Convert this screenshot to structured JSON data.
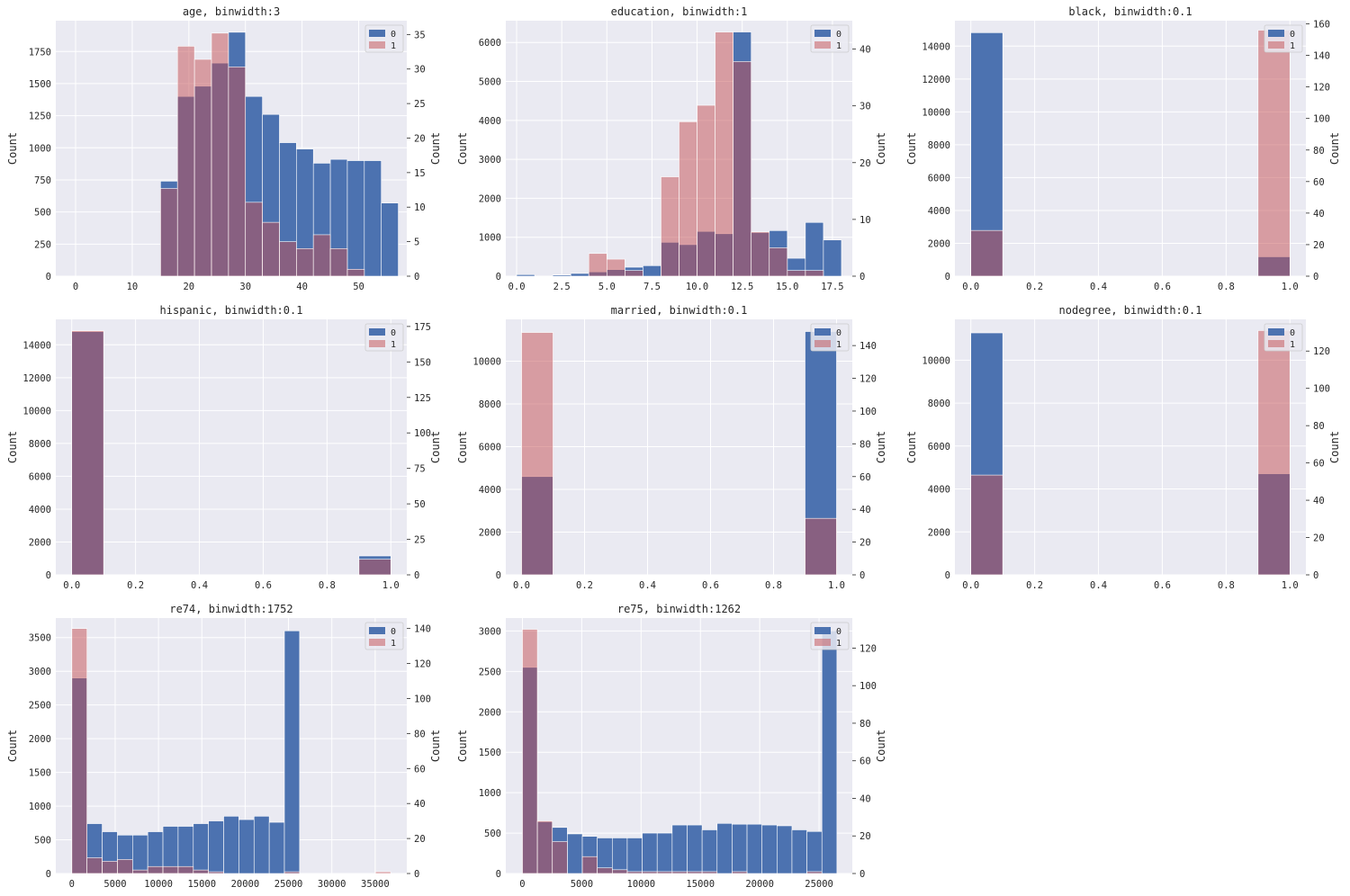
{
  "colors": {
    "panel_bg": "#eaeaf2",
    "grid": "#ffffff",
    "blue": "#4c72b0",
    "red": "#c44e52",
    "text": "#262626"
  },
  "chart_data": [
    {
      "type": "bar",
      "title": "age, binwidth:3",
      "xlabel": "",
      "ylabel_left": "Count",
      "ylabel_right": "Count",
      "xlim": [
        -3.5,
        58.5
      ],
      "xticks": [
        0,
        10,
        20,
        30,
        40,
        50
      ],
      "xtick_labels": [
        "0",
        "10",
        "20",
        "30",
        "40",
        "50"
      ],
      "ylim_left": [
        0,
        1990
      ],
      "yticks_left": [
        0,
        250,
        500,
        750,
        1000,
        1250,
        1500,
        1750
      ],
      "ytick_labels_left": [
        "0",
        "250",
        "500",
        "750",
        "1000",
        "1250",
        "1500",
        "1750"
      ],
      "ylim_right": [
        0,
        37
      ],
      "yticks_right": [
        0,
        5,
        10,
        15,
        20,
        25,
        30,
        35
      ],
      "ytick_labels_right": [
        "0",
        "5",
        "10",
        "15",
        "20",
        "25",
        "30",
        "35"
      ],
      "bin_edges": [
        15,
        18,
        21,
        24,
        27,
        30,
        33,
        36,
        39,
        42,
        45,
        48,
        51,
        54,
        57
      ],
      "legend": [
        "0",
        "1"
      ],
      "legend_loc": "upper right",
      "series": [
        {
          "name": "0",
          "axis": "left",
          "values": [
            740,
            1400,
            1480,
            1660,
            1900,
            1400,
            1260,
            1040,
            990,
            880,
            910,
            900,
            900,
            570
          ]
        },
        {
          "name": "1",
          "axis": "right",
          "values": [
            12.7,
            33.3,
            31.4,
            35.2,
            30.3,
            10.7,
            7.8,
            5,
            4,
            6,
            4,
            1,
            0,
            0
          ]
        }
      ]
    },
    {
      "type": "bar",
      "title": "education, binwidth:1",
      "xlabel": "",
      "ylabel_left": "Count",
      "ylabel_right": "Count",
      "xlim": [
        -0.6,
        18.6
      ],
      "xticks": [
        0,
        2.5,
        5,
        7.5,
        10,
        12.5,
        15,
        17.5
      ],
      "xtick_labels": [
        "0.0",
        "2.5",
        "5.0",
        "7.5",
        "10.0",
        "12.5",
        "15.0",
        "17.5"
      ],
      "ylim_left": [
        0,
        6560
      ],
      "yticks_left": [
        0,
        1000,
        2000,
        3000,
        4000,
        5000,
        6000
      ],
      "ytick_labels_left": [
        "0",
        "1000",
        "2000",
        "3000",
        "4000",
        "5000",
        "6000"
      ],
      "ylim_right": [
        0,
        45
      ],
      "yticks_right": [
        0,
        10,
        20,
        30,
        40
      ],
      "ytick_labels_right": [
        "0",
        "10",
        "20",
        "30",
        "40"
      ],
      "bin_edges": [
        0,
        1,
        2,
        3,
        4,
        5,
        6,
        7,
        8,
        9,
        10,
        11,
        12,
        13,
        14,
        15,
        16,
        17,
        18
      ],
      "legend": [
        "0",
        "1"
      ],
      "legend_loc": "upper right",
      "series": [
        {
          "name": "0",
          "axis": "left",
          "values": [
            40,
            0,
            30,
            70,
            110,
            170,
            230,
            270,
            870,
            810,
            1150,
            1090,
            6270,
            1120,
            1170,
            460,
            1380,
            930
          ]
        },
        {
          "name": "1",
          "axis": "right",
          "values": [
            0,
            0,
            0,
            0,
            4,
            3,
            1,
            0,
            17.5,
            27.2,
            30.1,
            43,
            37.8,
            7.8,
            5,
            1,
            1,
            0
          ]
        }
      ]
    },
    {
      "type": "bar",
      "title": "black, binwidth:0.1",
      "xlabel": "",
      "ylabel_left": "Count",
      "ylabel_right": "Count",
      "xlim": [
        -0.05,
        1.05
      ],
      "xticks": [
        0,
        0.2,
        0.4,
        0.6,
        0.8,
        1.0
      ],
      "xtick_labels": [
        "0.0",
        "0.2",
        "0.4",
        "0.6",
        "0.8",
        "1.0"
      ],
      "ylim_left": [
        0,
        15550
      ],
      "yticks_left": [
        0,
        2000,
        4000,
        6000,
        8000,
        10000,
        12000,
        14000
      ],
      "ytick_labels_left": [
        "0",
        "2000",
        "4000",
        "6000",
        "8000",
        "10000",
        "12000",
        "14000"
      ],
      "ylim_right": [
        0,
        162
      ],
      "yticks_right": [
        0,
        20,
        40,
        60,
        80,
        100,
        120,
        140,
        160
      ],
      "ytick_labels_right": [
        "0",
        "20",
        "40",
        "60",
        "80",
        "100",
        "120",
        "140",
        "160"
      ],
      "bin_edges": [
        0,
        0.1,
        0.2,
        0.3,
        0.4,
        0.5,
        0.6,
        0.7,
        0.8,
        0.9,
        1.0
      ],
      "legend": [
        "0",
        "1"
      ],
      "legend_loc": "upper right",
      "series": [
        {
          "name": "0",
          "axis": "left",
          "values": [
            14820,
            0,
            0,
            0,
            0,
            0,
            0,
            0,
            0,
            1180
          ]
        },
        {
          "name": "1",
          "axis": "right",
          "values": [
            29,
            0,
            0,
            0,
            0,
            0,
            0,
            0,
            0,
            156
          ]
        }
      ]
    },
    {
      "type": "bar",
      "title": "hispanic, binwidth:0.1",
      "xlabel": "",
      "ylabel_left": "Count",
      "ylabel_right": "Count",
      "xlim": [
        -0.05,
        1.05
      ],
      "xticks": [
        0,
        0.2,
        0.4,
        0.6,
        0.8,
        1.0
      ],
      "xtick_labels": [
        "0.0",
        "0.2",
        "0.4",
        "0.6",
        "0.8",
        "1.0"
      ],
      "ylim_left": [
        0,
        15550
      ],
      "yticks_left": [
        0,
        2000,
        4000,
        6000,
        8000,
        10000,
        12000,
        14000
      ],
      "ytick_labels_left": [
        "0",
        "2000",
        "4000",
        "6000",
        "8000",
        "10000",
        "12000",
        "14000"
      ],
      "ylim_right": [
        0,
        180
      ],
      "yticks_right": [
        0,
        25,
        50,
        75,
        100,
        125,
        150,
        175
      ],
      "ytick_labels_right": [
        "0",
        "25",
        "50",
        "75",
        "100",
        "125",
        "150",
        "175"
      ],
      "bin_edges": [
        0,
        0.1,
        0.2,
        0.3,
        0.4,
        0.5,
        0.6,
        0.7,
        0.8,
        0.9,
        1.0
      ],
      "legend": [
        "0",
        "1"
      ],
      "legend_loc": "upper right",
      "series": [
        {
          "name": "0",
          "axis": "left",
          "values": [
            14800,
            0,
            0,
            0,
            0,
            0,
            0,
            0,
            0,
            1150
          ]
        },
        {
          "name": "1",
          "axis": "right",
          "values": [
            172,
            0,
            0,
            0,
            0,
            0,
            0,
            0,
            0,
            11
          ]
        }
      ]
    },
    {
      "type": "bar",
      "title": "married, binwidth:0.1",
      "xlabel": "",
      "ylabel_left": "Count",
      "ylabel_right": "Count",
      "xlim": [
        -0.05,
        1.05
      ],
      "xticks": [
        0,
        0.2,
        0.4,
        0.6,
        0.8,
        1.0
      ],
      "xtick_labels": [
        "0.0",
        "0.2",
        "0.4",
        "0.6",
        "0.8",
        "1.0"
      ],
      "ylim_left": [
        0,
        11960
      ],
      "yticks_left": [
        0,
        2000,
        4000,
        6000,
        8000,
        10000
      ],
      "ytick_labels_left": [
        "0",
        "2000",
        "4000",
        "6000",
        "8000",
        "10000"
      ],
      "ylim_right": [
        0,
        156
      ],
      "yticks_right": [
        0,
        20,
        40,
        60,
        80,
        100,
        120,
        140
      ],
      "ytick_labels_right": [
        "0",
        "20",
        "40",
        "60",
        "80",
        "100",
        "120",
        "140"
      ],
      "bin_edges": [
        0,
        0.1,
        0.2,
        0.3,
        0.4,
        0.5,
        0.6,
        0.7,
        0.8,
        0.9,
        1.0
      ],
      "legend": [
        "0",
        "1"
      ],
      "legend_loc": "upper right",
      "series": [
        {
          "name": "0",
          "axis": "left",
          "values": [
            4600,
            0,
            0,
            0,
            0,
            0,
            0,
            0,
            0,
            11390
          ]
        },
        {
          "name": "1",
          "axis": "right",
          "values": [
            148,
            0,
            0,
            0,
            0,
            0,
            0,
            0,
            0,
            34.5
          ]
        }
      ]
    },
    {
      "type": "bar",
      "title": "nodegree, binwidth:0.1",
      "xlabel": "",
      "ylabel_left": "Count",
      "ylabel_right": "Count",
      "xlim": [
        -0.05,
        1.05
      ],
      "xticks": [
        0,
        0.2,
        0.4,
        0.6,
        0.8,
        1.0
      ],
      "xtick_labels": [
        "0.0",
        "0.2",
        "0.4",
        "0.6",
        "0.8",
        "1.0"
      ],
      "ylim_left": [
        0,
        11900
      ],
      "yticks_left": [
        0,
        2000,
        4000,
        6000,
        8000,
        10000
      ],
      "ytick_labels_left": [
        "0",
        "2000",
        "4000",
        "6000",
        "8000",
        "10000"
      ],
      "ylim_right": [
        0,
        137
      ],
      "yticks_right": [
        0,
        20,
        40,
        60,
        80,
        100,
        120
      ],
      "ytick_labels_right": [
        "0",
        "20",
        "40",
        "60",
        "80",
        "100",
        "120"
      ],
      "bin_edges": [
        0,
        0.1,
        0.2,
        0.3,
        0.4,
        0.5,
        0.6,
        0.7,
        0.8,
        0.9,
        1.0
      ],
      "legend": [
        "0",
        "1"
      ],
      "legend_loc": "upper right",
      "series": [
        {
          "name": "0",
          "axis": "left",
          "values": [
            11270,
            0,
            0,
            0,
            0,
            0,
            0,
            0,
            0,
            4710
          ]
        },
        {
          "name": "1",
          "axis": "right",
          "values": [
            53.5,
            0,
            0,
            0,
            0,
            0,
            0,
            0,
            0,
            131
          ]
        }
      ]
    },
    {
      "type": "bar",
      "title": "re74, binwidth:1752",
      "xlabel": "",
      "ylabel_left": "Count",
      "ylabel_right": "Count",
      "xlim": [
        -1850,
        38650
      ],
      "xticks": [
        0,
        5000,
        10000,
        15000,
        20000,
        25000,
        30000,
        35000
      ],
      "xtick_labels": [
        "0",
        "5000",
        "10000",
        "15000",
        "20000",
        "25000",
        "30000",
        "35000"
      ],
      "ylim_left": [
        0,
        3790
      ],
      "yticks_left": [
        0,
        500,
        1000,
        1500,
        2000,
        2500,
        3000,
        3500
      ],
      "ytick_labels_left": [
        "0",
        "500",
        "1000",
        "1500",
        "2000",
        "2500",
        "3000",
        "3500"
      ],
      "ylim_right": [
        0,
        146
      ],
      "yticks_right": [
        0,
        20,
        40,
        60,
        80,
        100,
        120,
        140
      ],
      "ytick_labels_right": [
        "0",
        "20",
        "40",
        "60",
        "80",
        "100",
        "120",
        "140"
      ],
      "bin_edges": [
        0,
        1752,
        3504,
        5256,
        7008,
        8760,
        10512,
        12264,
        14016,
        15768,
        17520,
        19272,
        21024,
        22776,
        24528,
        26280,
        28032,
        29784,
        31536,
        33288,
        35040,
        36792
      ],
      "legend": [
        "0",
        "1"
      ],
      "legend_loc": "upper right",
      "series": [
        {
          "name": "0",
          "axis": "left",
          "values": [
            2900,
            740,
            620,
            570,
            570,
            620,
            700,
            700,
            740,
            780,
            850,
            800,
            850,
            760,
            3600,
            0,
            0,
            0,
            0,
            0,
            0
          ]
        },
        {
          "name": "1",
          "axis": "right",
          "values": [
            140,
            9,
            7,
            8,
            2,
            4,
            4,
            4,
            2,
            1,
            0,
            0,
            0,
            0,
            1,
            0,
            0,
            0,
            0,
            0,
            1
          ]
        }
      ]
    },
    {
      "type": "bar",
      "title": "re75, binwidth:1262",
      "xlabel": "",
      "ylabel_left": "Count",
      "ylabel_right": "Count",
      "xlim": [
        -1400,
        27800
      ],
      "xticks": [
        0,
        5000,
        10000,
        15000,
        20000,
        25000
      ],
      "xtick_labels": [
        "0",
        "5000",
        "10000",
        "15000",
        "20000",
        "25000"
      ],
      "ylim_left": [
        0,
        3160
      ],
      "yticks_left": [
        0,
        500,
        1000,
        1500,
        2000,
        2500,
        3000
      ],
      "ytick_labels_left": [
        "0",
        "500",
        "1000",
        "1500",
        "2000",
        "2500",
        "3000"
      ],
      "ylim_right": [
        0,
        136
      ],
      "yticks_right": [
        0,
        20,
        40,
        60,
        80,
        100,
        120
      ],
      "ytick_labels_right": [
        "0",
        "20",
        "40",
        "60",
        "80",
        "100",
        "120"
      ],
      "bin_edges": [
        0,
        1262,
        2524,
        3786,
        5048,
        6310,
        7572,
        8834,
        10096,
        11358,
        12620,
        13882,
        15144,
        16406,
        17668,
        18930,
        20192,
        21454,
        22716,
        23978,
        25240,
        26502
      ],
      "legend": [
        "0",
        "1"
      ],
      "legend_loc": "upper right",
      "series": [
        {
          "name": "0",
          "axis": "left",
          "values": [
            2550,
            640,
            570,
            490,
            460,
            440,
            440,
            440,
            500,
            500,
            600,
            600,
            540,
            620,
            610,
            610,
            600,
            590,
            540,
            520,
            3000
          ]
        },
        {
          "name": "1",
          "axis": "right",
          "values": [
            130,
            28,
            17,
            0,
            9,
            3,
            2,
            1,
            1,
            1,
            1,
            1,
            1,
            0,
            1,
            0,
            0,
            0,
            0,
            1,
            0
          ]
        }
      ]
    }
  ]
}
